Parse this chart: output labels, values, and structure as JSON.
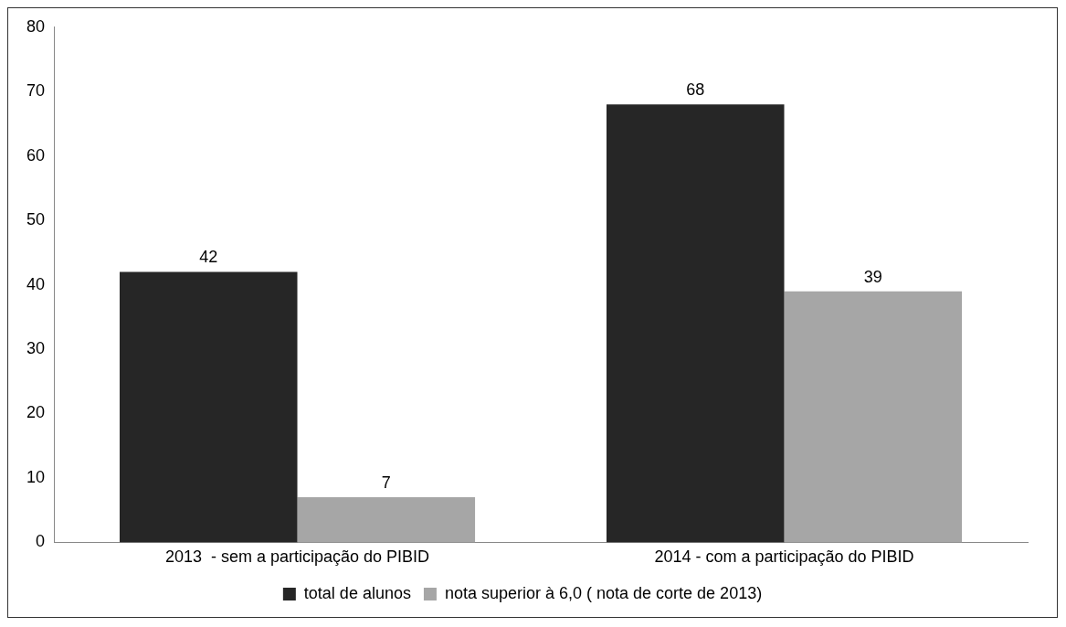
{
  "chart_data": {
    "type": "bar",
    "categories": [
      "2013  - sem a participação do PIBID",
      "2014 - com a participação do PIBID"
    ],
    "series": [
      {
        "name": "total de alunos",
        "color": "#262626",
        "values": [
          42,
          68
        ]
      },
      {
        "name": "nota superior à 6,0 ( nota de corte de 2013)",
        "color": "#a6a6a6",
        "values": [
          7,
          39
        ]
      }
    ],
    "ylim": [
      0,
      80
    ],
    "yticks": [
      0,
      10,
      20,
      30,
      40,
      50,
      60,
      70,
      80
    ],
    "grid": false,
    "legend": "bottom",
    "data_labels": true
  }
}
